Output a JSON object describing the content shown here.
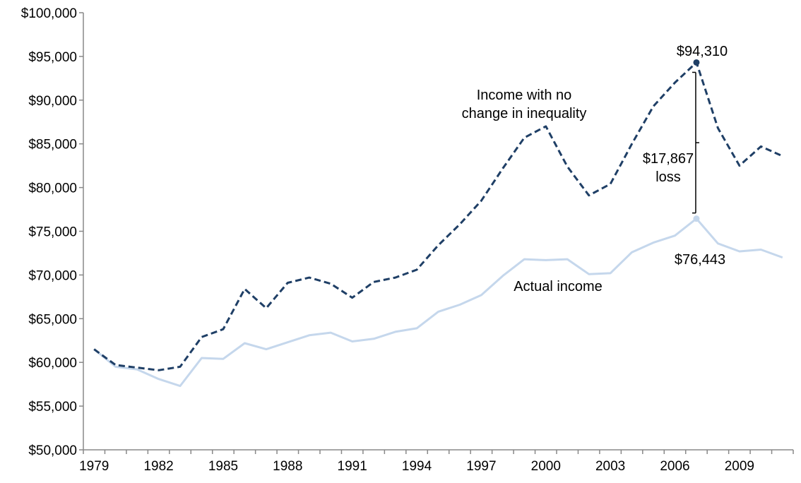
{
  "chart_data": {
    "type": "line",
    "title": "",
    "xlabel": "",
    "ylabel": "",
    "x": [
      1979,
      1980,
      1981,
      1982,
      1983,
      1984,
      1985,
      1986,
      1987,
      1988,
      1989,
      1990,
      1991,
      1992,
      1993,
      1994,
      1995,
      1996,
      1997,
      1998,
      1999,
      2000,
      2001,
      2002,
      2003,
      2004,
      2005,
      2006,
      2007,
      2008,
      2009,
      2010,
      2011
    ],
    "xlim": [
      1979,
      2011
    ],
    "ylim": [
      50000,
      100000
    ],
    "y_ticks": [
      "$50,000",
      "$55,000",
      "$60,000",
      "$65,000",
      "$70,000",
      "$75,000",
      "$80,000",
      "$85,000",
      "$90,000",
      "$95,000",
      "$100,000"
    ],
    "x_ticks": [
      "1979",
      "1982",
      "1985",
      "1988",
      "1991",
      "1994",
      "1997",
      "2000",
      "2003",
      "2006",
      "2009"
    ],
    "series": [
      {
        "name": "Income with no change in inequality",
        "style": "dashed",
        "color": "#1f3f66",
        "values": [
          61500,
          59700,
          59400,
          59100,
          59500,
          62900,
          63800,
          68400,
          66200,
          69100,
          69700,
          69000,
          67400,
          69200,
          69700,
          70600,
          73400,
          75800,
          78500,
          82200,
          85700,
          87000,
          82400,
          79100,
          80400,
          85000,
          89300,
          92000,
          94310,
          86800,
          82500,
          84700,
          83600
        ]
      },
      {
        "name": "Actual income",
        "style": "solid",
        "color": "#c5d7ec",
        "values": [
          61500,
          59500,
          59200,
          58100,
          57300,
          60500,
          60400,
          62200,
          61500,
          62300,
          63100,
          63400,
          62400,
          62700,
          63500,
          63900,
          65800,
          66600,
          67700,
          69900,
          71800,
          71700,
          71800,
          70100,
          70200,
          72600,
          73700,
          74500,
          76443,
          73600,
          72700,
          72900,
          72000
        ]
      }
    ],
    "annotations": {
      "no_change_label_line1": "Income with no",
      "no_change_label_line2": "change in inequality",
      "actual_label": "Actual income",
      "peak_no_change_value": "$94,310",
      "peak_actual_value": "$76,443",
      "loss_value": "$17,867",
      "loss_word": "loss",
      "peak_year": 2007
    }
  },
  "colors": {
    "axis": "#888888",
    "dashed_series": "#1f3f66",
    "solid_series": "#c5d7ec"
  }
}
